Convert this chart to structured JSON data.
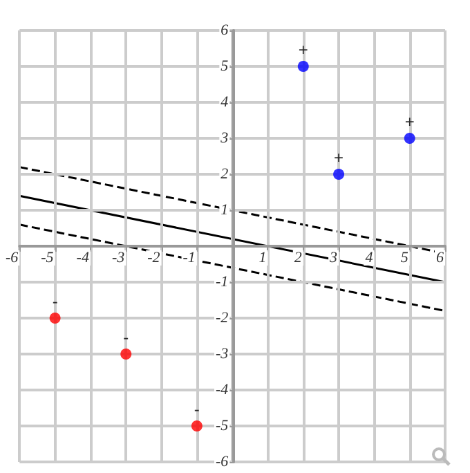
{
  "chart_data": {
    "type": "scatter",
    "xlim": [
      -6,
      6
    ],
    "ylim": [
      -6,
      6
    ],
    "xticks": [
      -6,
      -5,
      -4,
      -3,
      -2,
      -1,
      {
        "value": 0,
        "label": null
      },
      1,
      2,
      3,
      4,
      5,
      6
    ],
    "yticks": [
      -6,
      -5,
      -4,
      -3,
      -2,
      -1,
      {
        "value": 0,
        "label": null
      },
      1,
      2,
      3,
      4,
      5,
      6
    ],
    "grid": true,
    "series": [
      {
        "color": "#0000ff",
        "marker": "circle",
        "x": [
          2,
          3,
          5
        ],
        "values": [
          5,
          2,
          3
        ],
        "value_labels": [
          "+",
          "+",
          "+"
        ]
      },
      {
        "color": "#ff0000",
        "marker": "circle",
        "x": [
          -5,
          -3,
          -1
        ],
        "values": [
          -2,
          -3,
          -5
        ],
        "value_labels": [
          "-",
          "-",
          "-"
        ]
      },
      {
        "type": "line",
        "color": "#000000",
        "marker": "none",
        "line_style": "solid",
        "x": [
          -6,
          6
        ],
        "values": [
          1.4,
          -1.0
        ]
      },
      {
        "type": "line",
        "color": "#000000",
        "marker": "none",
        "line_style": "dashed",
        "x": [
          -6,
          6
        ],
        "values": [
          2.2,
          -0.2
        ]
      },
      {
        "type": "line",
        "color": "#000000",
        "marker": "none",
        "line_style": "dashed",
        "x": [
          -6,
          6
        ],
        "values": [
          0.6,
          -1.8
        ]
      }
    ]
  }
}
